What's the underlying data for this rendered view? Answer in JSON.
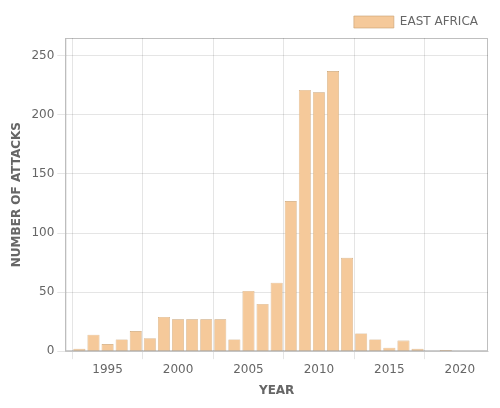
{
  "chart_data": {
    "type": "bar",
    "x": [
      1993,
      1994,
      1995,
      1996,
      1997,
      1998,
      1999,
      2000,
      2001,
      2002,
      2003,
      2004,
      2005,
      2006,
      2007,
      2008,
      2009,
      2010,
      2011,
      2012,
      2013,
      2014,
      2015,
      2016,
      2017,
      2018,
      2019,
      2020,
      2021
    ],
    "series": [
      {
        "name": "EAST AFRICA",
        "color": "#f5c99a",
        "values": [
          2,
          14,
          6,
          10,
          17,
          11,
          29,
          27,
          27,
          27,
          27,
          10,
          51,
          40,
          58,
          127,
          221,
          219,
          237,
          79,
          15,
          10,
          3,
          9,
          2,
          0,
          1,
          0,
          0
        ]
      }
    ],
    "xlabel": "YEAR",
    "ylabel": "NUMBER OF ATTACKS",
    "xlim": [
      1992.0,
      2022.0
    ],
    "ylim": [
      0,
      265
    ],
    "xticks": [
      1995,
      2000,
      2005,
      2010,
      2015,
      2020
    ],
    "yticks": [
      0,
      50,
      100,
      150,
      200,
      250
    ],
    "grid": true,
    "legend": "upper right"
  }
}
